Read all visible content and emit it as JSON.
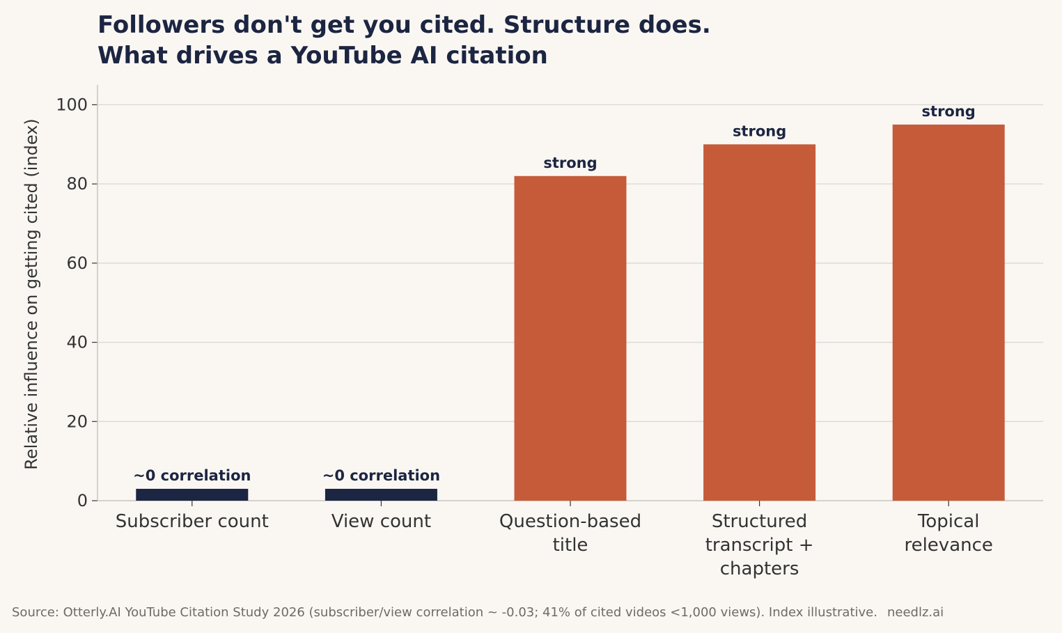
{
  "title_line1": "Followers don't get you cited. Structure does.",
  "title_line2": "What drives a YouTube AI citation",
  "footer": {
    "source": "Source: Otterly.AI YouTube Citation Study 2026 (subscriber/view correlation ~ -0.03; 41% of cited videos <1,000 views). Index illustrative.",
    "brand": "needlz.ai"
  },
  "colors": {
    "background": "#faf7f3",
    "navy": "#1c2541",
    "orange": "#c65b3a",
    "grid": "#dedad5",
    "axis": "#c8c4bf"
  },
  "chart_data": {
    "type": "bar",
    "title": "Followers don't get you cited. Structure does. What drives a YouTube AI citation",
    "xlabel": "",
    "ylabel": "Relative influence on getting cited (index)",
    "ylim": [
      0,
      105
    ],
    "yticks": [
      0,
      20,
      40,
      60,
      80,
      100
    ],
    "grid": true,
    "categories": [
      [
        "Subscriber count"
      ],
      [
        "View count"
      ],
      [
        "Question-based",
        "title"
      ],
      [
        "Structured",
        "transcript +",
        "chapters"
      ],
      [
        "Topical",
        "relevance"
      ]
    ],
    "values": [
      3,
      3,
      82,
      90,
      95
    ],
    "bar_colors": [
      "#1c2541",
      "#1c2541",
      "#c65b3a",
      "#c65b3a",
      "#c65b3a"
    ],
    "data_labels": [
      "~0 correlation",
      "~0 correlation",
      "strong",
      "strong",
      "strong"
    ]
  }
}
